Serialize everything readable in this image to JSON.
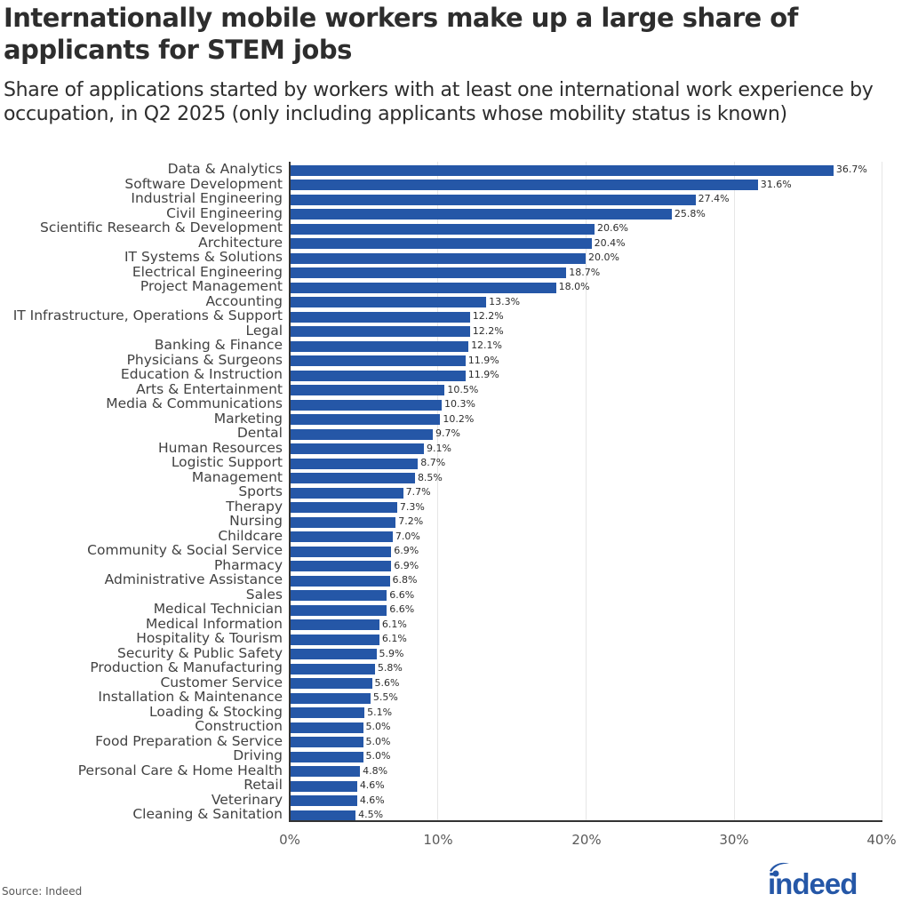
{
  "header": {
    "title": "Internationally mobile workers make up a large share of applicants for STEM jobs",
    "subtitle": "Share of applications started by workers with at least one international work experience by occupation, in Q2 2025 (only including applicants whose mobility status is known)"
  },
  "footer": {
    "source": "Source: Indeed",
    "logo_text": "indeed",
    "logo_color": "#2557a7"
  },
  "colors": {
    "bar": "#2557a7",
    "axis": "#333333",
    "grid": "#e6e6e6"
  },
  "chart_data": {
    "type": "bar",
    "orientation": "horizontal",
    "title": "Internationally mobile workers make up a large share of applicants for STEM jobs",
    "subtitle": "Share of applications started by workers with at least one international work experience by occupation, in Q2 2025 (only including applicants whose mobility status is known)",
    "xlabel": "",
    "ylabel": "",
    "xlim": [
      0,
      40
    ],
    "x_ticks": [
      "0%",
      "10%",
      "20%",
      "30%",
      "40%"
    ],
    "grid": true,
    "legend": null,
    "categories": [
      "Data & Analytics",
      "Software Development",
      "Industrial Engineering",
      "Civil Engineering",
      "Scientific Research & Development",
      "Architecture",
      "IT Systems & Solutions",
      "Electrical Engineering",
      "Project Management",
      "Accounting",
      "IT Infrastructure, Operations & Support",
      "Legal",
      "Banking & Finance",
      "Physicians & Surgeons",
      "Education & Instruction",
      "Arts & Entertainment",
      "Media & Communications",
      "Marketing",
      "Dental",
      "Human Resources",
      "Logistic Support",
      "Management",
      "Sports",
      "Therapy",
      "Nursing",
      "Childcare",
      "Community & Social Service",
      "Pharmacy",
      "Administrative Assistance",
      "Sales",
      "Medical Technician",
      "Medical Information",
      "Hospitality & Tourism",
      "Security & Public Safety",
      "Production & Manufacturing",
      "Customer Service",
      "Installation & Maintenance",
      "Loading & Stocking",
      "Construction",
      "Food Preparation & Service",
      "Driving",
      "Personal Care & Home Health",
      "Retail",
      "Veterinary",
      "Cleaning & Sanitation"
    ],
    "values": [
      36.7,
      31.6,
      27.4,
      25.8,
      20.6,
      20.4,
      20.0,
      18.7,
      18.0,
      13.3,
      12.2,
      12.2,
      12.1,
      11.9,
      11.9,
      10.5,
      10.3,
      10.2,
      9.7,
      9.1,
      8.7,
      8.5,
      7.7,
      7.3,
      7.2,
      7.0,
      6.9,
      6.9,
      6.8,
      6.6,
      6.6,
      6.1,
      6.1,
      5.9,
      5.8,
      5.6,
      5.5,
      5.1,
      5.0,
      5.0,
      5.0,
      4.8,
      4.6,
      4.6,
      4.5
    ],
    "labels": [
      "36.7%",
      "31.6%",
      "27.4%",
      "25.8%",
      "20.6%",
      "20.4%",
      "20.0%",
      "18.7%",
      "18.0%",
      "13.3%",
      "12.2%",
      "12.2%",
      "12.1%",
      "11.9%",
      "11.9%",
      "10.5%",
      "10.3%",
      "10.2%",
      "9.7%",
      "9.1%",
      "8.7%",
      "8.5%",
      "7.7%",
      "7.3%",
      "7.2%",
      "7.0%",
      "6.9%",
      "6.9%",
      "6.8%",
      "6.6%",
      "6.6%",
      "6.1%",
      "6.1%",
      "5.9%",
      "5.8%",
      "5.6%",
      "5.5%",
      "5.1%",
      "5.0%",
      "5.0%",
      "5.0%",
      "4.8%",
      "4.6%",
      "4.6%",
      "4.5%"
    ]
  }
}
